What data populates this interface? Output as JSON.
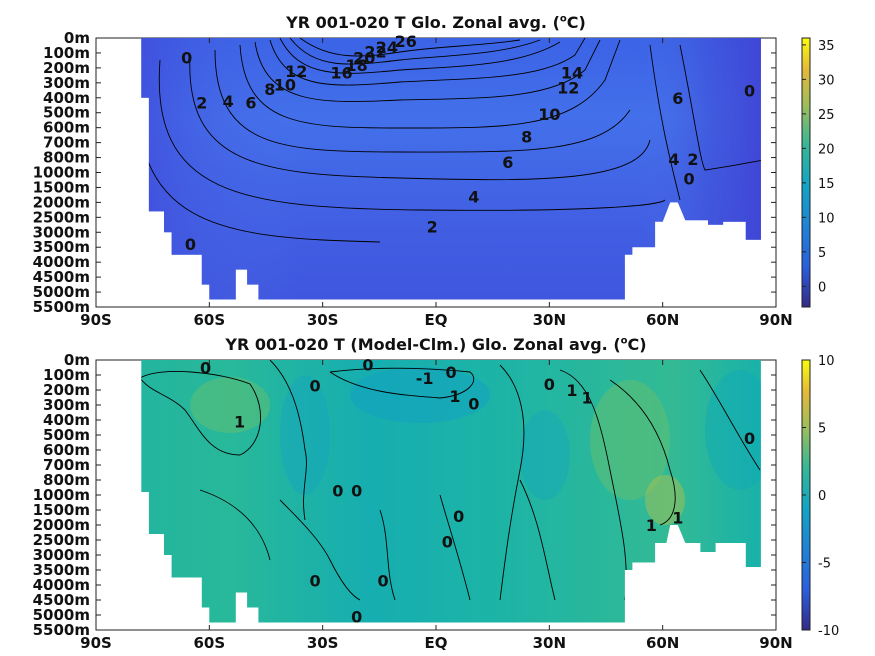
{
  "chart_data": [
    {
      "type": "heatmap",
      "title_main": "YR 001-020 T Glo. Zonal avg. (",
      "title_sup": "o",
      "title_end": "C)",
      "x_ticks": [
        "90S",
        "60S",
        "30S",
        "EQ",
        "30N",
        "60N",
        "90N"
      ],
      "y_ticks": [
        "0m",
        "100m",
        "200m",
        "300m",
        "400m",
        "500m",
        "600m",
        "700m",
        "800m",
        "1000m",
        "1500m",
        "2000m",
        "2500m",
        "3000m",
        "3500m",
        "4000m",
        "4500m",
        "5000m",
        "5500m"
      ],
      "xlim": [
        -90,
        90
      ],
      "colorbar": {
        "min": -3,
        "max": 36,
        "ticks": [
          0,
          5,
          10,
          15,
          20,
          25,
          30,
          35
        ],
        "labels": [
          "0",
          "5",
          "10",
          "15",
          "20",
          "25",
          "30",
          "35"
        ]
      },
      "contour_labels": [
        {
          "text": "26",
          "lat": -8,
          "depth": 0.2
        },
        {
          "text": "24",
          "lat": -13,
          "depth": 0.6
        },
        {
          "text": "22",
          "lat": -16,
          "depth": 0.9
        },
        {
          "text": "20",
          "lat": -19,
          "depth": 1.3
        },
        {
          "text": "18",
          "lat": -21,
          "depth": 1.8
        },
        {
          "text": "16",
          "lat": -25,
          "depth": 2.3
        },
        {
          "text": "12",
          "lat": -37,
          "depth": 2.2
        },
        {
          "text": "10",
          "lat": -40,
          "depth": 3.1
        },
        {
          "text": "8",
          "lat": -44,
          "depth": 3.4
        },
        {
          "text": "6",
          "lat": -49,
          "depth": 4.3
        },
        {
          "text": "4",
          "lat": -55,
          "depth": 4.2
        },
        {
          "text": "2",
          "lat": -62,
          "depth": 4.3
        },
        {
          "text": "0",
          "lat": -66,
          "depth": 1.3
        },
        {
          "text": "14",
          "lat": 36,
          "depth": 2.3
        },
        {
          "text": "12",
          "lat": 35,
          "depth": 3.3
        },
        {
          "text": "10",
          "lat": 30,
          "depth": 5.1
        },
        {
          "text": "8",
          "lat": 24,
          "depth": 6.6
        },
        {
          "text": "6",
          "lat": 19,
          "depth": 8.3
        },
        {
          "text": "4",
          "lat": 10,
          "depth": 10.6
        },
        {
          "text": "2",
          "lat": -1,
          "depth": 12.6
        },
        {
          "text": "6",
          "lat": 64,
          "depth": 4.0
        },
        {
          "text": "0",
          "lat": 83,
          "depth": 3.5
        },
        {
          "text": "4",
          "lat": 63,
          "depth": 8.1
        },
        {
          "text": "0",
          "lat": 67,
          "depth": 9.4
        },
        {
          "text": "2",
          "lat": 68,
          "depth": 8.1
        },
        {
          "text": "0",
          "lat": -65,
          "depth": 13.8
        }
      ]
    },
    {
      "type": "heatmap",
      "title_main": "YR 001-020 T (Model-Clm.) Glo. Zonal avg. (",
      "title_sup": "o",
      "title_end": "C)",
      "x_ticks": [
        "90S",
        "60S",
        "30S",
        "EQ",
        "30N",
        "60N",
        "90N"
      ],
      "y_ticks": [
        "0m",
        "100m",
        "200m",
        "300m",
        "400m",
        "500m",
        "600m",
        "700m",
        "800m",
        "1000m",
        "1500m",
        "2000m",
        "2500m",
        "3000m",
        "3500m",
        "4000m",
        "4500m",
        "5000m",
        "5500m"
      ],
      "xlim": [
        -90,
        90
      ],
      "colorbar": {
        "min": -10,
        "max": 10,
        "ticks": [
          -10,
          -5,
          0,
          5,
          10
        ],
        "labels": [
          "-10",
          "-5",
          "0",
          "5",
          "10"
        ]
      },
      "contour_labels": [
        {
          "text": "0",
          "lat": -61,
          "depth": 0.5
        },
        {
          "text": "0",
          "lat": -32,
          "depth": 1.7
        },
        {
          "text": "0",
          "lat": -18,
          "depth": 0.3
        },
        {
          "text": "-1",
          "lat": -3,
          "depth": 1.2
        },
        {
          "text": "0",
          "lat": 4,
          "depth": 0.8
        },
        {
          "text": "1",
          "lat": 5,
          "depth": 2.4
        },
        {
          "text": "0",
          "lat": 10,
          "depth": 2.9
        },
        {
          "text": "0",
          "lat": 30,
          "depth": 1.6
        },
        {
          "text": "1",
          "lat": 36,
          "depth": 2.0
        },
        {
          "text": "1",
          "lat": 40,
          "depth": 2.5
        },
        {
          "text": "1",
          "lat": -52,
          "depth": 4.1
        },
        {
          "text": "0",
          "lat": 83,
          "depth": 5.2
        },
        {
          "text": "0",
          "lat": -26,
          "depth": 8.7
        },
        {
          "text": "0",
          "lat": -21,
          "depth": 8.7
        },
        {
          "text": "0",
          "lat": 6,
          "depth": 10.4
        },
        {
          "text": "0",
          "lat": 3,
          "depth": 12.1
        },
        {
          "text": "1",
          "lat": 57,
          "depth": 11.0
        },
        {
          "text": "1",
          "lat": 64,
          "depth": 10.5
        },
        {
          "text": "0",
          "lat": -32,
          "depth": 14.7
        },
        {
          "text": "0",
          "lat": -14,
          "depth": 14.7
        },
        {
          "text": "0",
          "lat": -21,
          "depth": 17.1
        }
      ]
    }
  ]
}
